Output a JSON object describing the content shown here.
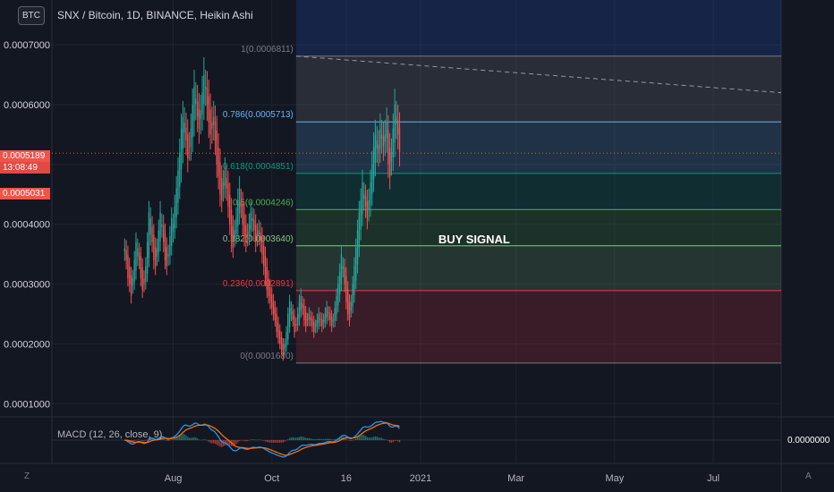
{
  "badge": "BTC",
  "title": "SNX / Bitcoin, 1D, BINANCE, Heikin Ashi",
  "macd_label": "MACD (12, 26, close, 9)",
  "macd_value": "0.0000000",
  "price_tags": {
    "last_price": "0.0005189",
    "countdown": "13:08:49",
    "prev_price": "0.0005031"
  },
  "corner_left": "Z",
  "corner_right": "A",
  "annotation": "BUY SIGNAL",
  "chart_data": {
    "type": "candlestick",
    "style": "Heikin Ashi",
    "y_axis": {
      "ticks": [
        "0.0001000",
        "0.0002000",
        "0.0003000",
        "0.0004000",
        "0.0005000",
        "0.0006000",
        "0.0007000"
      ],
      "tick_values": [
        0.0001,
        0.0002,
        0.0003,
        0.0004,
        0.0005,
        0.0006,
        0.0007
      ],
      "range": [
        7.8e-05,
        0.000775
      ]
    },
    "x_axis": {
      "ticks": [
        "Aug",
        "Oct",
        "16",
        "2021",
        "Mar",
        "May",
        "Jul"
      ],
      "dates": [
        "2020-08-01",
        "2020-10-01",
        "2020-11-16",
        "2021-01-01",
        "2021-03-01",
        "2021-05-01",
        "2021-07-01"
      ],
      "range": [
        "2020-05-18",
        "2021-08-12"
      ]
    },
    "price_series": {
      "start_date": "2020-07-02",
      "close": [
        0.00036,
        0.00034,
        0.00031,
        0.0003,
        0.00028,
        0.00031,
        0.00034,
        0.00037,
        0.00036,
        0.00034,
        0.00031,
        0.00029,
        0.0003,
        0.00033,
        0.00037,
        0.00042,
        0.00041,
        0.00037,
        0.00034,
        0.00033,
        0.00036,
        0.00039,
        0.00042,
        0.0004,
        0.00037,
        0.00034,
        0.00033,
        0.00035,
        0.00038,
        0.00041,
        0.0004,
        0.00043,
        0.00046,
        0.00049,
        0.00052,
        0.00056,
        0.00058,
        0.00057,
        0.00054,
        0.00051,
        0.00053,
        0.00056,
        0.0006,
        0.00063,
        0.00061,
        0.00058,
        0.00056,
        0.00059,
        0.00062,
        0.00065,
        0.00063,
        0.0006,
        0.00057,
        0.00055,
        0.00056,
        0.00058,
        0.00054,
        0.0005,
        0.00048,
        0.00045,
        0.00044,
        0.00047,
        0.00049,
        0.00046,
        0.00043,
        0.0004,
        0.00037,
        0.00036,
        0.00039,
        0.00041,
        0.00044,
        0.00046,
        0.00043,
        0.0004,
        0.00038,
        0.00037,
        0.00038,
        0.0004,
        0.00042,
        0.00041,
        0.00039,
        0.00037,
        0.00038,
        0.00039,
        0.00037,
        0.00035,
        0.00033,
        0.00031,
        0.00029,
        0.00028,
        0.00027,
        0.00026,
        0.00025,
        0.00024,
        0.00022,
        0.00021,
        0.0002,
        0.00019,
        0.00018,
        0.0002,
        0.00022,
        0.00025,
        0.00027,
        0.00026,
        0.00024,
        0.00022,
        0.00023,
        0.00025,
        0.00027,
        0.00028,
        0.00026,
        0.00024,
        0.00023,
        0.00024,
        0.00025,
        0.00024,
        0.00023,
        0.00022,
        0.00023,
        0.00024,
        0.00025,
        0.00024,
        0.00023,
        0.00024,
        0.00025,
        0.00026,
        0.00025,
        0.00024,
        0.00023,
        0.00024,
        0.00026,
        0.00028,
        0.0003,
        0.00032,
        0.00035,
        0.00033,
        0.0003,
        0.00027,
        0.00025,
        0.00024,
        0.00027,
        0.0003,
        0.00033,
        0.00036,
        0.00039,
        0.00042,
        0.00044,
        0.00047,
        0.00045,
        0.00043,
        0.00041,
        0.00044,
        0.00047,
        0.0005,
        0.00053,
        0.00055,
        0.00054,
        0.00052,
        0.00056,
        0.00055,
        0.00053,
        0.00055,
        0.00057,
        0.0005,
        0.00048,
        0.00052,
        0.00056,
        0.0006,
        0.00058,
        0.00055,
        0.00052
      ]
    },
    "fibonacci": {
      "levels": [
        {
          "ratio": "0",
          "value": 0.000168,
          "label": "0(0.0001680)",
          "color": "#787b86"
        },
        {
          "ratio": "0.236",
          "value": 0.0002891,
          "label": "0.236(0.0002891)",
          "color": "#f23645"
        },
        {
          "ratio": "0.382",
          "value": 0.000364,
          "label": "0.382(0.0003640)",
          "color": "#81c784"
        },
        {
          "ratio": "0.5",
          "value": 0.0004246,
          "label": "0.5(0.0004246)",
          "color": "#4caf50"
        },
        {
          "ratio": "0.618",
          "value": 0.0004851,
          "label": "0.618(0.0004851)",
          "color": "#089981"
        },
        {
          "ratio": "0.786",
          "value": 0.0005713,
          "label": "0.786(0.0005713)",
          "color": "#64b5f6"
        },
        {
          "ratio": "1",
          "value": 0.0006811,
          "label": "1(0.0006811)",
          "color": "#787b86"
        }
      ],
      "zone_colors": [
        "#f23645",
        "#81c784",
        "#4caf50",
        "#089981",
        "#64b5f6",
        "#9598a1",
        "#2962ff"
      ],
      "start_date": "2020-10-16"
    },
    "trendline": {
      "from": {
        "date": "2020-10-16",
        "value": 0.0006811
      },
      "to": {
        "date": "2021-08-12",
        "value": 0.00062
      },
      "style": "dashed"
    },
    "current_price_line": 0.0005189,
    "macd": {
      "fast": 12,
      "slow": 26,
      "source": "close",
      "signal": 9
    }
  }
}
